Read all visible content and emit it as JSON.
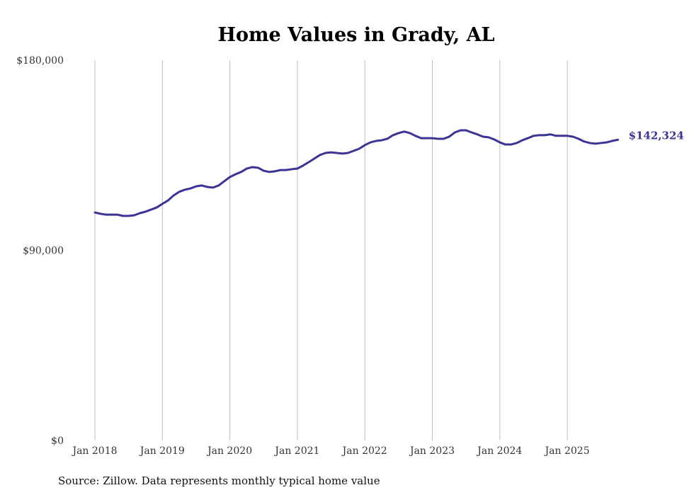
{
  "chart_data": {
    "type": "line",
    "title": "Home Values in Grady, AL",
    "xlabel": "",
    "ylabel": "",
    "ylim": [
      0,
      180000
    ],
    "y_ticks": [
      "$0",
      "$90,000",
      "$180,000"
    ],
    "y_tick_values": [
      0,
      90000,
      180000
    ],
    "x_ticks": [
      "Jan 2018",
      "Jan 2019",
      "Jan 2020",
      "Jan 2021",
      "Jan 2022",
      "Jan 2023",
      "Jan 2024",
      "Jan 2025"
    ],
    "grid": "vertical",
    "start": "Jan 2018",
    "frequency": "monthly",
    "series": [
      {
        "name": "Typical home value",
        "color": "#3b3494",
        "end_label": "$142,324",
        "values": [
          107900,
          107300,
          106900,
          106900,
          106900,
          106300,
          106300,
          106600,
          107600,
          108300,
          109300,
          110300,
          112000,
          113600,
          116000,
          117700,
          118700,
          119300,
          120300,
          120700,
          120000,
          119700,
          120700,
          122700,
          124700,
          126000,
          127100,
          128700,
          129400,
          129100,
          127700,
          127100,
          127400,
          128000,
          128000,
          128400,
          128700,
          130100,
          131700,
          133400,
          135100,
          136100,
          136400,
          136100,
          135800,
          136100,
          137100,
          138100,
          139800,
          141100,
          141800,
          142100,
          142800,
          144500,
          145500,
          146200,
          145500,
          144200,
          143100,
          143100,
          143100,
          142800,
          142800,
          143800,
          145800,
          146800,
          146800,
          145800,
          144900,
          143800,
          143500,
          142500,
          141100,
          140100,
          140100,
          140800,
          142100,
          143100,
          144200,
          144500,
          144500,
          144900,
          144200,
          144200,
          144200,
          143800,
          142800,
          141500,
          140800,
          140500,
          140800,
          141100,
          141800,
          142324
        ]
      }
    ],
    "source": "Source: Zillow. Data represents monthly typical home value"
  }
}
